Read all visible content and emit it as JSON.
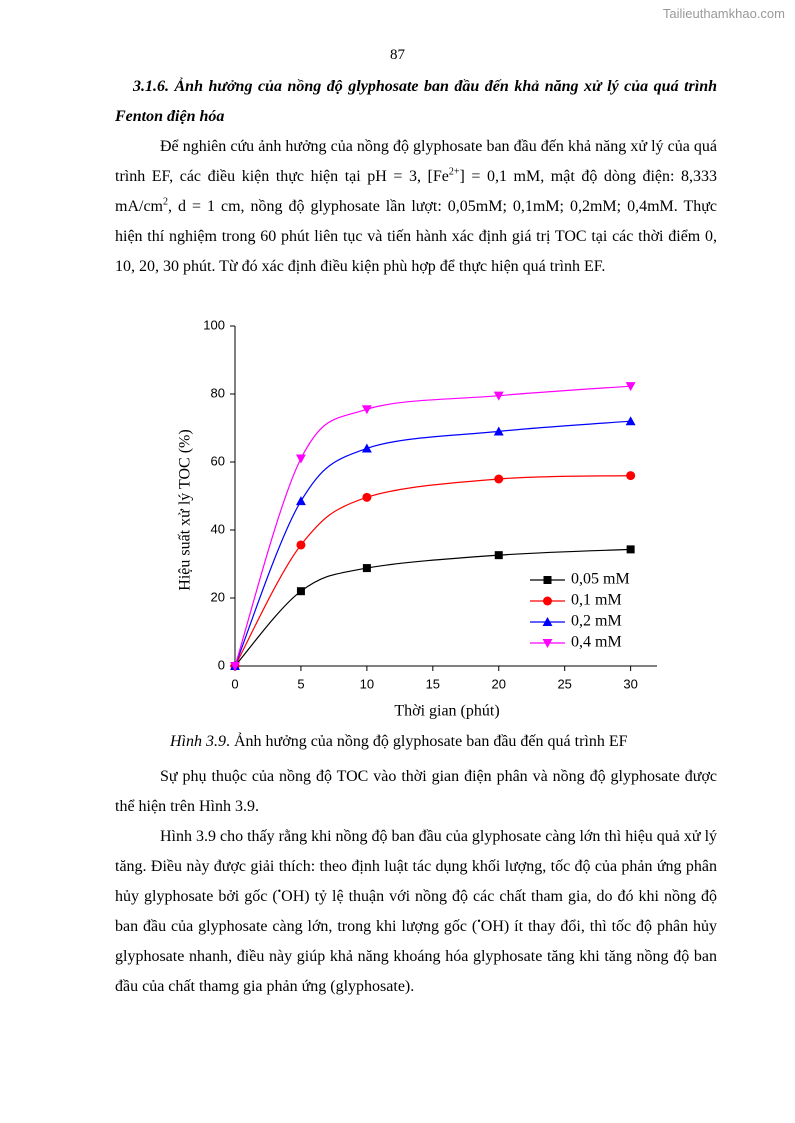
{
  "header": {
    "watermark": "Tailieuthamkhao.com",
    "page_number": "87"
  },
  "heading": "3.1.6. Ảnh hưởng của nồng độ glyphosate ban đầu đến khả năng xử lý của quá trình Fenton điện hóa",
  "paragraphs_before": [
    [
      "Để nghiên cứu ảnh hưởng của nồng độ glyphosate ban đầu đến khả năng xử lý của quá trình EF, các điều kiện thực hiện tại pH = 3, [Fe",
      "2+",
      "] = 0,1 mM, mật độ dòng điện: 8,333 mA/cm",
      "2",
      ", d = 1 cm, nồng độ glyphosate lần lượt: 0,05mM; 0,1mM; 0,2mM; 0,4mM. Thực hiện thí nghiệm trong 60 phút liên tục và tiến hành xác định giá trị TOC tại các thời điểm 0, 10, 20, 30 phút. Từ đó xác định điều kiện phù hợp để thực hiện quá trình EF."
    ]
  ],
  "chart_data": {
    "type": "line",
    "x_label": "Thời gian (phút)",
    "y_label": "Hiệu suất xử lý TOC (%)",
    "x": [
      0,
      5,
      10,
      20,
      30
    ],
    "series": [
      {
        "name": "0,05 mM",
        "color": "#000000",
        "marker": "square",
        "values": [
          0,
          22,
          28.8,
          32.6,
          34.3
        ]
      },
      {
        "name": "0,1 mM",
        "color": "#ff0000",
        "marker": "circle",
        "values": [
          0,
          35.6,
          49.6,
          55,
          56
        ]
      },
      {
        "name": "0,2 mM",
        "color": "#0000ff",
        "marker": "triangle-up",
        "values": [
          0,
          48.5,
          64,
          69,
          72
        ]
      },
      {
        "name": "0,4 mM",
        "color": "#ff00ff",
        "marker": "triangle-down",
        "values": [
          0,
          61,
          75.5,
          79.5,
          82.3
        ]
      }
    ],
    "xlim": [
      0,
      32
    ],
    "xticks": [
      0,
      5,
      10,
      15,
      20,
      25,
      30
    ],
    "ylim": [
      0,
      100
    ],
    "yticks": [
      0,
      20,
      40,
      60,
      80,
      100
    ],
    "legend": "lower right",
    "grid": false
  },
  "caption": [
    "Hình 3.9",
    ". Ảnh hưởng của nồng độ glyphosate ban đầu đến quá trình EF"
  ],
  "paragraphs_after": [
    [
      "Sự phụ thuộc của nồng độ TOC vào thời gian điện phân và nồng độ glyphosate được thể hiện trên Hình 3.9."
    ],
    [
      "Hình 3.9 cho thấy rằng khi nồng độ ban đầu của glyphosate càng lớn thì hiệu quả xử lý tăng. Điều này được giải thích: theo định luật tác dụng khối lượng, tốc độ của phản ứng phân hủy glyphosate bởi gốc (",
      "•",
      "OH) tỷ lệ thuận với nồng độ các chất tham gia, do đó khi nồng độ ban đầu của glyphosate càng lớn, trong khi lượng gốc (",
      "•",
      "OH) ít thay đổi, thì tốc độ phân hủy glyphosate nhanh, điều này giúp khả năng khoáng hóa glyphosate tăng khi tăng nồng độ ban đầu của chất thamg gia phản ứng (glyphosate)."
    ]
  ]
}
